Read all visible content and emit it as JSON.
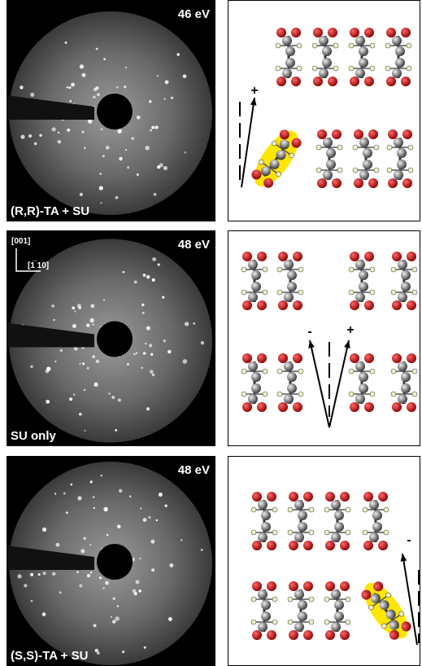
{
  "figure": {
    "panels": [
      {
        "energy": "46 eV",
        "label": "(R,R)-TA + SU",
        "signs": [
          "+"
        ]
      },
      {
        "energy": "48 eV",
        "label": "SU only",
        "axes": [
          "[001]",
          "[1̅ 10]"
        ],
        "signs": [
          "-",
          "+"
        ]
      },
      {
        "energy": "48 eV",
        "label": "(S,S)-TA + SU",
        "signs": [
          "-"
        ]
      }
    ]
  }
}
